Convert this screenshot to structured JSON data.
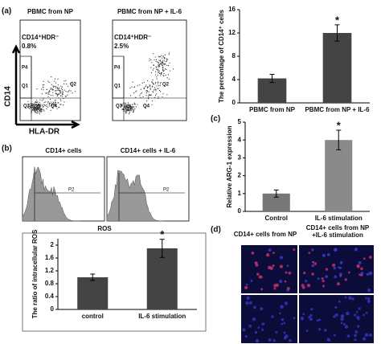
{
  "panel_labels": [
    "(a)",
    "(b)",
    "(c)",
    "(d)"
  ],
  "flow": {
    "axis_y": "CD14",
    "axis_x": "HLA-DR",
    "plots": [
      {
        "title": "PBMC from NP",
        "gate": "CD14⁺HDR⁻",
        "percent": "0.8%",
        "regions": [
          "P4",
          "Q1",
          "Q2",
          "Q3",
          "Q4"
        ]
      },
      {
        "title": "PBMC from NP + IL-6",
        "gate": "CD14⁺HDR⁻",
        "percent": "2.5%",
        "regions": [
          "P4",
          "Q1",
          "Q2",
          "Q3",
          "Q4"
        ]
      }
    ]
  },
  "histograms": {
    "axis_x": "ROS",
    "plots": [
      {
        "title": "CD14+ cells",
        "gate": "P2"
      },
      {
        "title": "CD14+ cells + IL-6",
        "gate": "P2"
      }
    ]
  },
  "microscopy": {
    "titles": [
      "CD14+ cells from NP",
      "CD14+ cells from NP +IL-6 stimulation"
    ]
  },
  "chart_data": [
    {
      "type": "bar",
      "ylabel": "The percentage of CD14⁺ cells",
      "categories": [
        "PBMC from NP",
        "PBMC from NP + IL-6"
      ],
      "values": [
        4.2,
        12
      ],
      "errors": [
        0.7,
        1.4
      ],
      "colors": [
        "#444444",
        "#444444"
      ],
      "ylim": [
        0,
        16
      ],
      "yticks": [
        0,
        4,
        8,
        12,
        16
      ],
      "annotation": "*"
    },
    {
      "type": "bar",
      "ylabel": "Relative ARG-1 expression",
      "categories": [
        "Control",
        "IL-6 stimulation"
      ],
      "values": [
        1.0,
        4.0
      ],
      "errors": [
        0.2,
        0.55
      ],
      "colors": [
        "#777777",
        "#8a8a8a"
      ],
      "ylim": [
        0,
        5
      ],
      "yticks": [
        0,
        1,
        2,
        3,
        4,
        5
      ],
      "annotation": "*"
    },
    {
      "type": "bar",
      "ylabel": "The ratio of intracellular ROS",
      "categories": [
        "control",
        "IL-6 stimulation"
      ],
      "values": [
        1.0,
        1.9
      ],
      "errors": [
        0.1,
        0.28
      ],
      "colors": [
        "#444444",
        "#444444"
      ],
      "ylim": [
        0,
        2.2
      ],
      "yticks": [
        0,
        0.4,
        0.8,
        1.2,
        1.6,
        2
      ],
      "annotation": "*"
    }
  ]
}
